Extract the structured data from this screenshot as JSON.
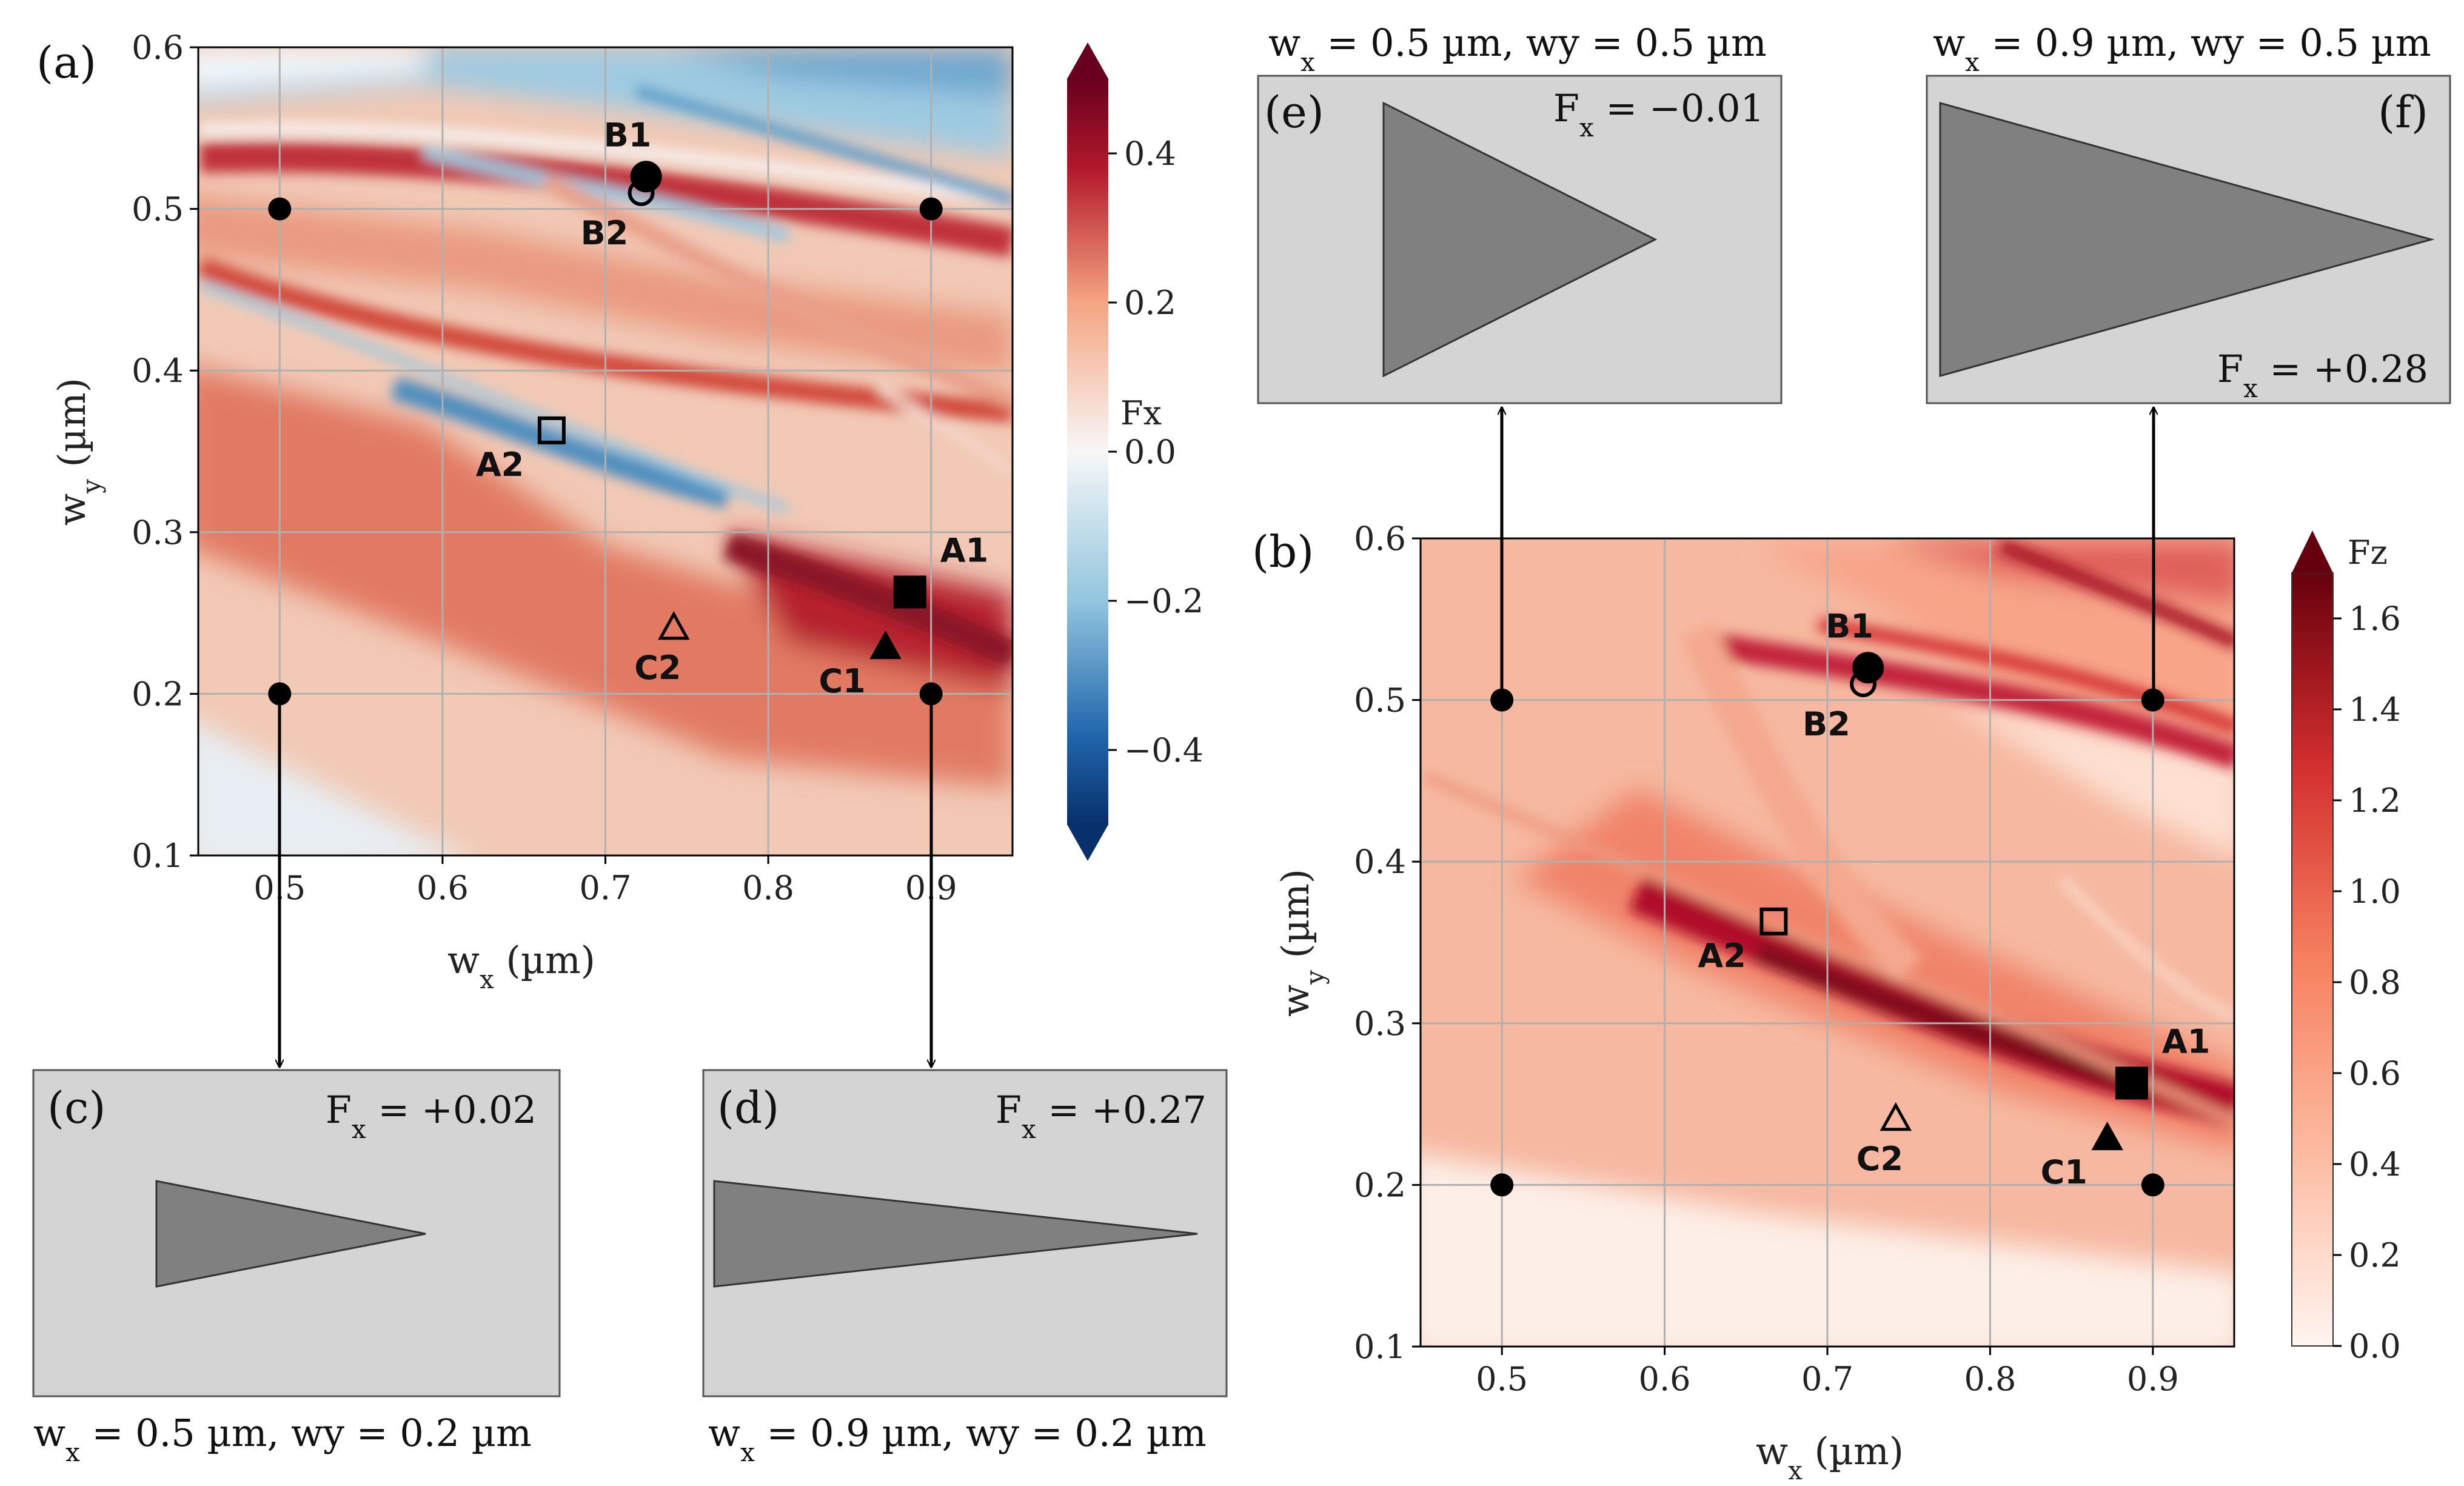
{
  "colors": {
    "box_bg": "#d4d4d4",
    "triangle_fill": "#808080",
    "grid": "#b0b0b0",
    "marker": "#000000",
    "arrow": "#000000"
  },
  "chart_data": [
    {
      "panel": "(a)",
      "type": "heatmap",
      "xlabel": "w",
      "xlabel_sub": "x",
      "xlabel_unit": " (µm)",
      "ylabel": "w",
      "ylabel_sub": "y",
      "ylabel_unit": " (µm)",
      "xlim": [
        0.45,
        0.95
      ],
      "ylim": [
        0.1,
        0.6
      ],
      "x_ticks": [
        "0.5",
        "0.6",
        "0.7",
        "0.8",
        "0.9"
      ],
      "x_tick_values": [
        0.5,
        0.6,
        0.7,
        0.8,
        0.9
      ],
      "y_ticks": [
        "0.1",
        "0.2",
        "0.3",
        "0.4",
        "0.5",
        "0.6"
      ],
      "y_tick_values": [
        0.1,
        0.2,
        0.3,
        0.4,
        0.5,
        0.6
      ],
      "grid": true,
      "colorbar": {
        "label": "Fx",
        "colormap": "RdBu_r",
        "range": [
          -0.5,
          0.5
        ],
        "extend": "both",
        "ticks": [
          "0.4",
          "0.2",
          "0.0",
          "−0.2",
          "−0.4"
        ],
        "tick_values": [
          0.4,
          0.2,
          0.0,
          -0.2,
          -0.4
        ]
      },
      "dots": [
        {
          "x": 0.5,
          "y": 0.5
        },
        {
          "x": 0.9,
          "y": 0.5
        },
        {
          "x": 0.5,
          "y": 0.2
        },
        {
          "x": 0.9,
          "y": 0.2
        }
      ],
      "markers": [
        {
          "label": "B1",
          "shape": "circle",
          "filled": true,
          "x": 0.725,
          "y": 0.52
        },
        {
          "label": "B2",
          "shape": "circle",
          "filled": false,
          "x": 0.722,
          "y": 0.51
        },
        {
          "label": "A2",
          "shape": "square",
          "filled": false,
          "x": 0.667,
          "y": 0.363
        },
        {
          "label": "A1",
          "shape": "square",
          "filled": true,
          "x": 0.887,
          "y": 0.263
        },
        {
          "label": "C2",
          "shape": "triangle",
          "filled": false,
          "x": 0.742,
          "y": 0.241
        },
        {
          "label": "C1",
          "shape": "triangle",
          "filled": true,
          "x": 0.872,
          "y": 0.229
        }
      ]
    },
    {
      "panel": "(b)",
      "type": "heatmap",
      "xlabel": "w",
      "xlabel_sub": "x",
      "xlabel_unit": " (µm)",
      "ylabel": "w",
      "ylabel_sub": "y",
      "ylabel_unit": " (µm)",
      "xlim": [
        0.45,
        0.95
      ],
      "ylim": [
        0.1,
        0.6
      ],
      "x_ticks": [
        "0.5",
        "0.6",
        "0.7",
        "0.8",
        "0.9"
      ],
      "x_tick_values": [
        0.5,
        0.6,
        0.7,
        0.8,
        0.9
      ],
      "y_ticks": [
        "0.1",
        "0.2",
        "0.3",
        "0.4",
        "0.5",
        "0.6"
      ],
      "y_tick_values": [
        0.1,
        0.2,
        0.3,
        0.4,
        0.5,
        0.6
      ],
      "grid": true,
      "colorbar": {
        "label": "Fz",
        "colormap": "Reds",
        "range": [
          0.0,
          1.7
        ],
        "extend": "max",
        "ticks": [
          "1.6",
          "1.4",
          "1.2",
          "1.0",
          "0.8",
          "0.6",
          "0.4",
          "0.2",
          "0.0"
        ],
        "tick_values": [
          1.6,
          1.4,
          1.2,
          1.0,
          0.8,
          0.6,
          0.4,
          0.2,
          0.0
        ]
      },
      "dots": [
        {
          "x": 0.5,
          "y": 0.5
        },
        {
          "x": 0.9,
          "y": 0.5
        },
        {
          "x": 0.5,
          "y": 0.2
        },
        {
          "x": 0.9,
          "y": 0.2
        }
      ],
      "markers": [
        {
          "label": "B1",
          "shape": "circle",
          "filled": true,
          "x": 0.725,
          "y": 0.52
        },
        {
          "label": "B2",
          "shape": "circle",
          "filled": false,
          "x": 0.722,
          "y": 0.51
        },
        {
          "label": "A2",
          "shape": "square",
          "filled": false,
          "x": 0.667,
          "y": 0.363
        },
        {
          "label": "A1",
          "shape": "square",
          "filled": true,
          "x": 0.887,
          "y": 0.263
        },
        {
          "label": "C2",
          "shape": "triangle",
          "filled": false,
          "x": 0.742,
          "y": 0.241
        },
        {
          "label": "C1",
          "shape": "triangle",
          "filled": true,
          "x": 0.872,
          "y": 0.229
        }
      ]
    }
  ],
  "shapes": [
    {
      "panel": "(c)",
      "wx": 0.5,
      "wy": 0.2,
      "fx_label": "F",
      "fx_sub": "x",
      "fx_value": " = +0.02",
      "caption_w": "w",
      "caption_sub": "x",
      "caption_rest": " = 0.5 µm, wy = 0.2 µm"
    },
    {
      "panel": "(d)",
      "wx": 0.9,
      "wy": 0.2,
      "fx_label": "F",
      "fx_sub": "x",
      "fx_value": " = +0.27",
      "caption_w": "w",
      "caption_sub": "x",
      "caption_rest": " = 0.9 µm, wy = 0.2 µm"
    },
    {
      "panel": "(e)",
      "wx": 0.5,
      "wy": 0.5,
      "fx_label": "F",
      "fx_sub": "x",
      "fx_value": " = −0.01",
      "caption_w": "w",
      "caption_sub": "x",
      "caption_rest": " = 0.5 µm, wy = 0.5 µm"
    },
    {
      "panel": "(f)",
      "wx": 0.9,
      "wy": 0.5,
      "fx_label": "F",
      "fx_sub": "x",
      "fx_value": " = +0.28",
      "caption_w": "w",
      "caption_sub": "x",
      "caption_rest": " = 0.9 µm, wy = 0.5 µm"
    }
  ]
}
